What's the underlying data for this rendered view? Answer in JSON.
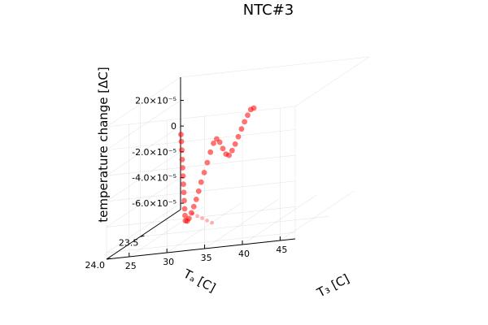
{
  "chart_data": {
    "type": "scatter3d",
    "title": "NTC#3",
    "xlabel": "T₃ [C]",
    "ylabel": "Tₐ [C]",
    "zlabel": "temperature change [ΔC]",
    "xlim": [
      22,
      47
    ],
    "ylim": [
      22.9,
      24.0
    ],
    "zlim": [
      -6.5e-05,
      3.8e-05
    ],
    "x_ticks": [
      "25",
      "30",
      "35",
      "40",
      "45"
    ],
    "y_ticks": [
      "23.5",
      "24.0"
    ],
    "z_ticks": [
      "2.0×10⁻⁵",
      "0",
      "-2.0×10⁻⁵",
      "-4.0×10⁻⁵",
      "-6.0×10⁻⁵"
    ],
    "grid": true,
    "legend": "none",
    "series_color": "#ff0000",
    "series": [
      {
        "x": [
          22.5,
          23.0,
          23.5,
          24.0,
          24.5,
          25.0,
          25.5,
          26.0,
          26.5,
          27.0,
          27.5,
          28.0,
          28.5,
          29.0,
          29.5,
          30.0,
          30.5,
          31.0,
          31.5,
          32.0,
          32.5,
          33.0,
          33.5,
          34.0,
          34.5,
          35.0,
          35.5,
          36.0,
          36.5,
          37.0,
          37.5,
          38.0,
          38.5,
          39.0,
          39.5,
          40.0
        ],
        "y": [
          22.95,
          23.0,
          23.05,
          23.1,
          23.15,
          23.2,
          23.25,
          23.3,
          23.35,
          23.4,
          23.45,
          23.5,
          23.53,
          23.56,
          23.58,
          23.6,
          23.62,
          23.64,
          23.66,
          23.67,
          23.68,
          23.69,
          23.7,
          23.71,
          23.72,
          23.73,
          23.74,
          23.75,
          23.76,
          23.77,
          23.78,
          23.79,
          23.8,
          23.81,
          23.82,
          23.83
        ],
        "z": [
          -5.1e-06,
          -9.2e-06,
          -1.44e-05,
          -2.03e-05,
          -2.53e-05,
          -3.02e-05,
          -3.52e-05,
          -4.01e-05,
          -4.51e-05,
          -5e-05,
          -5.38e-05,
          -5.64e-05,
          -5.59e-05,
          -5.32e-05,
          -4.84e-05,
          -4.32e-05,
          -3.72e-05,
          -3.04e-05,
          -2.3e-05,
          -1.55e-05,
          -7.7e-06,
          4e-07,
          7.3e-06,
          1.08e-05,
          8.3e-06,
          3.4e-06,
          -9e-07,
          -1.8e-06,
          1.9e-06,
          7e-06,
          1.27e-05,
          1.88e-05,
          2.44e-05,
          2.96e-05,
          3.4e-05,
          3.52e-05
        ]
      },
      {
        "x": [
          30.0,
          31.0,
          32.0,
          33.0,
          34.0
        ],
        "y": [
          23.62,
          23.66,
          23.7,
          23.74,
          23.78
        ],
        "z": [
          -4.8e-05,
          -4.9e-05,
          -5e-05,
          -5.1e-05,
          -5.2e-05
        ]
      }
    ]
  }
}
